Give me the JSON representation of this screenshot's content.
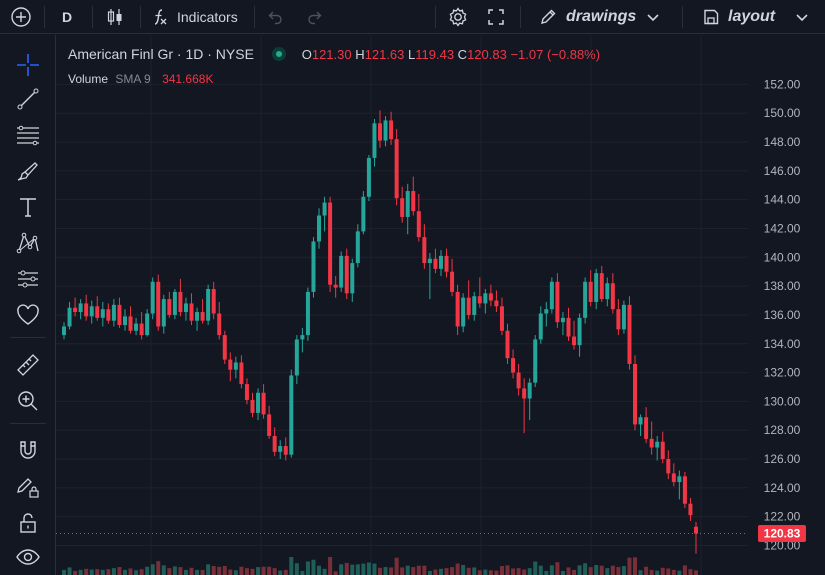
{
  "toolbar": {
    "interval": "D",
    "indicators_label": "Indicators",
    "drawings_label": "drawings",
    "layout_label": "layout"
  },
  "legend": {
    "symbol": "American Finl Gr · 1D · NYSE",
    "open_label": "O",
    "open": "121.30",
    "high_label": "H",
    "high": "121.63",
    "low_label": "L",
    "low": "119.43",
    "close_label": "C",
    "close": "120.83",
    "change": "−1.07 (−0.88%)",
    "volume_label": "Volume",
    "sma_label": "SMA 9",
    "volume_value": "341.668K"
  },
  "colors": {
    "up": "#26a69a",
    "down": "#f23645",
    "bg": "#131722",
    "grid": "#1e222d",
    "text": "#b2b5be"
  },
  "sidebar_icons": [
    "crosshair-icon",
    "trend-line-icon",
    "fib-icon",
    "brush-icon",
    "text-icon",
    "pattern-icon",
    "forecast-icon",
    "heart-icon",
    "ruler-icon",
    "zoom-in-icon",
    "magnet-icon",
    "lock-pencil-icon",
    "lock-icon",
    "eye-icon"
  ],
  "chart_data": {
    "type": "candlestick",
    "y_ticks": [
      "152.00",
      "150.00",
      "148.00",
      "146.00",
      "144.00",
      "142.00",
      "140.00",
      "138.00",
      "136.00",
      "134.00",
      "132.00",
      "130.00",
      "128.00",
      "126.00",
      "124.00",
      "122.00",
      "120.00"
    ],
    "ylim": [
      119.2,
      153.0
    ],
    "last_price": "120.83",
    "last_price_value": 120.83,
    "candles": [
      [
        134.6,
        135.5,
        134.3,
        135.2
      ],
      [
        135.2,
        136.9,
        135.0,
        136.5
      ],
      [
        136.5,
        137.2,
        135.9,
        136.2
      ],
      [
        136.2,
        137.1,
        135.7,
        136.8
      ],
      [
        136.8,
        137.4,
        135.6,
        135.9
      ],
      [
        135.9,
        137.0,
        135.4,
        136.6
      ],
      [
        136.6,
        137.3,
        135.6,
        135.8
      ],
      [
        135.8,
        136.9,
        135.2,
        136.4
      ],
      [
        136.4,
        136.8,
        135.4,
        135.6
      ],
      [
        135.6,
        137.1,
        135.2,
        136.7
      ],
      [
        136.7,
        137.2,
        135.1,
        135.3
      ],
      [
        135.3,
        136.4,
        134.9,
        135.9
      ],
      [
        135.9,
        136.6,
        134.7,
        134.9
      ],
      [
        134.9,
        135.8,
        134.6,
        135.4
      ],
      [
        135.4,
        136.2,
        134.3,
        134.6
      ],
      [
        134.6,
        136.4,
        134.5,
        136.1
      ],
      [
        136.1,
        138.6,
        135.7,
        138.3
      ],
      [
        138.3,
        138.8,
        134.9,
        135.2
      ],
      [
        135.2,
        137.4,
        134.7,
        137.1
      ],
      [
        137.1,
        137.6,
        135.8,
        136.0
      ],
      [
        136.0,
        137.8,
        135.7,
        137.6
      ],
      [
        137.6,
        138.5,
        135.9,
        136.2
      ],
      [
        136.2,
        137.2,
        135.6,
        136.8
      ],
      [
        136.8,
        137.5,
        135.3,
        135.6
      ],
      [
        135.6,
        136.5,
        134.9,
        136.2
      ],
      [
        136.2,
        137.1,
        135.4,
        135.6
      ],
      [
        135.6,
        138.1,
        135.3,
        137.8
      ],
      [
        137.8,
        138.3,
        135.7,
        136.1
      ],
      [
        136.1,
        136.9,
        134.3,
        134.6
      ],
      [
        134.6,
        134.9,
        132.6,
        132.9
      ],
      [
        132.9,
        133.4,
        131.4,
        132.2
      ],
      [
        132.2,
        133.1,
        131.6,
        132.7
      ],
      [
        132.7,
        133.2,
        130.9,
        131.2
      ],
      [
        131.2,
        131.6,
        129.8,
        130.1
      ],
      [
        130.1,
        130.6,
        128.9,
        129.2
      ],
      [
        129.2,
        130.9,
        128.7,
        130.6
      ],
      [
        130.6,
        131.2,
        128.8,
        129.1
      ],
      [
        129.1,
        129.7,
        127.4,
        127.6
      ],
      [
        127.6,
        128.2,
        126.2,
        126.5
      ],
      [
        126.5,
        127.3,
        126.0,
        126.9
      ],
      [
        126.9,
        127.5,
        125.9,
        126.3
      ],
      [
        126.3,
        132.2,
        126.1,
        131.8
      ],
      [
        131.8,
        134.6,
        131.2,
        134.3
      ],
      [
        134.3,
        135.1,
        133.4,
        134.6
      ],
      [
        134.6,
        137.9,
        134.2,
        137.6
      ],
      [
        137.6,
        141.4,
        137.2,
        141.1
      ],
      [
        141.1,
        143.4,
        140.6,
        142.9
      ],
      [
        142.9,
        144.2,
        141.8,
        143.8
      ],
      [
        143.8,
        144.2,
        137.6,
        138.1
      ],
      [
        138.1,
        138.7,
        137.2,
        137.9
      ],
      [
        137.9,
        140.4,
        137.6,
        140.1
      ],
      [
        140.1,
        140.6,
        137.1,
        137.5
      ],
      [
        137.5,
        139.9,
        136.9,
        139.6
      ],
      [
        139.6,
        142.3,
        139.3,
        141.8
      ],
      [
        141.8,
        144.6,
        141.6,
        144.2
      ],
      [
        144.2,
        147.1,
        143.9,
        146.9
      ],
      [
        146.9,
        149.6,
        146.3,
        149.3
      ],
      [
        149.3,
        150.2,
        147.6,
        148.1
      ],
      [
        148.1,
        149.8,
        147.7,
        149.5
      ],
      [
        149.5,
        150.1,
        147.8,
        148.2
      ],
      [
        148.2,
        148.9,
        143.6,
        144.1
      ],
      [
        144.1,
        144.9,
        142.4,
        142.8
      ],
      [
        142.8,
        145.1,
        141.6,
        144.6
      ],
      [
        144.6,
        145.6,
        142.9,
        143.2
      ],
      [
        143.2,
        144.4,
        141.1,
        141.4
      ],
      [
        141.4,
        142.3,
        139.2,
        139.6
      ],
      [
        139.6,
        140.3,
        137.1,
        139.9
      ],
      [
        139.9,
        140.6,
        138.9,
        139.2
      ],
      [
        139.2,
        140.5,
        138.7,
        140.1
      ],
      [
        140.1,
        140.6,
        138.6,
        139.0
      ],
      [
        139.0,
        139.9,
        137.3,
        137.6
      ],
      [
        137.6,
        138.1,
        134.6,
        135.2
      ],
      [
        135.2,
        137.5,
        134.8,
        137.2
      ],
      [
        137.2,
        138.4,
        135.7,
        136.0
      ],
      [
        136.0,
        137.6,
        135.6,
        137.3
      ],
      [
        137.3,
        138.6,
        136.5,
        136.8
      ],
      [
        136.8,
        137.8,
        136.1,
        137.5
      ],
      [
        137.5,
        138.1,
        136.6,
        137.0
      ],
      [
        137.0,
        137.7,
        136.2,
        136.6
      ],
      [
        136.6,
        137.2,
        134.6,
        134.9
      ],
      [
        134.9,
        135.4,
        132.6,
        133.0
      ],
      [
        133.0,
        133.6,
        131.6,
        132.0
      ],
      [
        132.0,
        132.6,
        130.4,
        130.9
      ],
      [
        130.9,
        131.6,
        127.8,
        130.2
      ],
      [
        130.2,
        131.6,
        128.7,
        131.3
      ],
      [
        131.3,
        134.6,
        131.0,
        134.3
      ],
      [
        134.3,
        136.6,
        134.0,
        136.1
      ],
      [
        136.1,
        136.9,
        135.2,
        136.4
      ],
      [
        136.4,
        138.6,
        136.1,
        138.3
      ],
      [
        138.3,
        138.9,
        135.1,
        135.5
      ],
      [
        135.5,
        136.2,
        134.6,
        135.8
      ],
      [
        135.8,
        136.5,
        134.2,
        134.5
      ],
      [
        134.5,
        135.6,
        133.6,
        133.9
      ],
      [
        133.9,
        136.1,
        133.1,
        135.8
      ],
      [
        135.8,
        138.6,
        135.4,
        138.3
      ],
      [
        138.3,
        139.1,
        136.6,
        136.9
      ],
      [
        136.9,
        139.2,
        136.4,
        138.9
      ],
      [
        138.9,
        139.4,
        136.9,
        137.1
      ],
      [
        137.1,
        138.6,
        136.6,
        138.2
      ],
      [
        138.2,
        138.9,
        136.1,
        136.4
      ],
      [
        136.4,
        137.1,
        134.6,
        135.0
      ],
      [
        135.0,
        137.0,
        134.7,
        136.7
      ],
      [
        136.7,
        137.3,
        132.2,
        132.6
      ],
      [
        132.6,
        133.2,
        128.0,
        128.4
      ],
      [
        128.4,
        129.1,
        127.6,
        128.9
      ],
      [
        128.9,
        129.6,
        127.1,
        127.4
      ],
      [
        127.4,
        128.6,
        126.3,
        126.8
      ],
      [
        126.8,
        127.6,
        125.9,
        127.2
      ],
      [
        127.2,
        127.9,
        125.7,
        126.0
      ],
      [
        126.0,
        126.6,
        124.6,
        125.0
      ],
      [
        125.0,
        125.7,
        124.1,
        124.4
      ],
      [
        124.4,
        125.2,
        123.2,
        124.8
      ],
      [
        124.8,
        125.1,
        122.6,
        122.9
      ],
      [
        122.9,
        123.3,
        121.7,
        122.1
      ],
      [
        121.3,
        121.63,
        119.43,
        120.83
      ]
    ]
  }
}
